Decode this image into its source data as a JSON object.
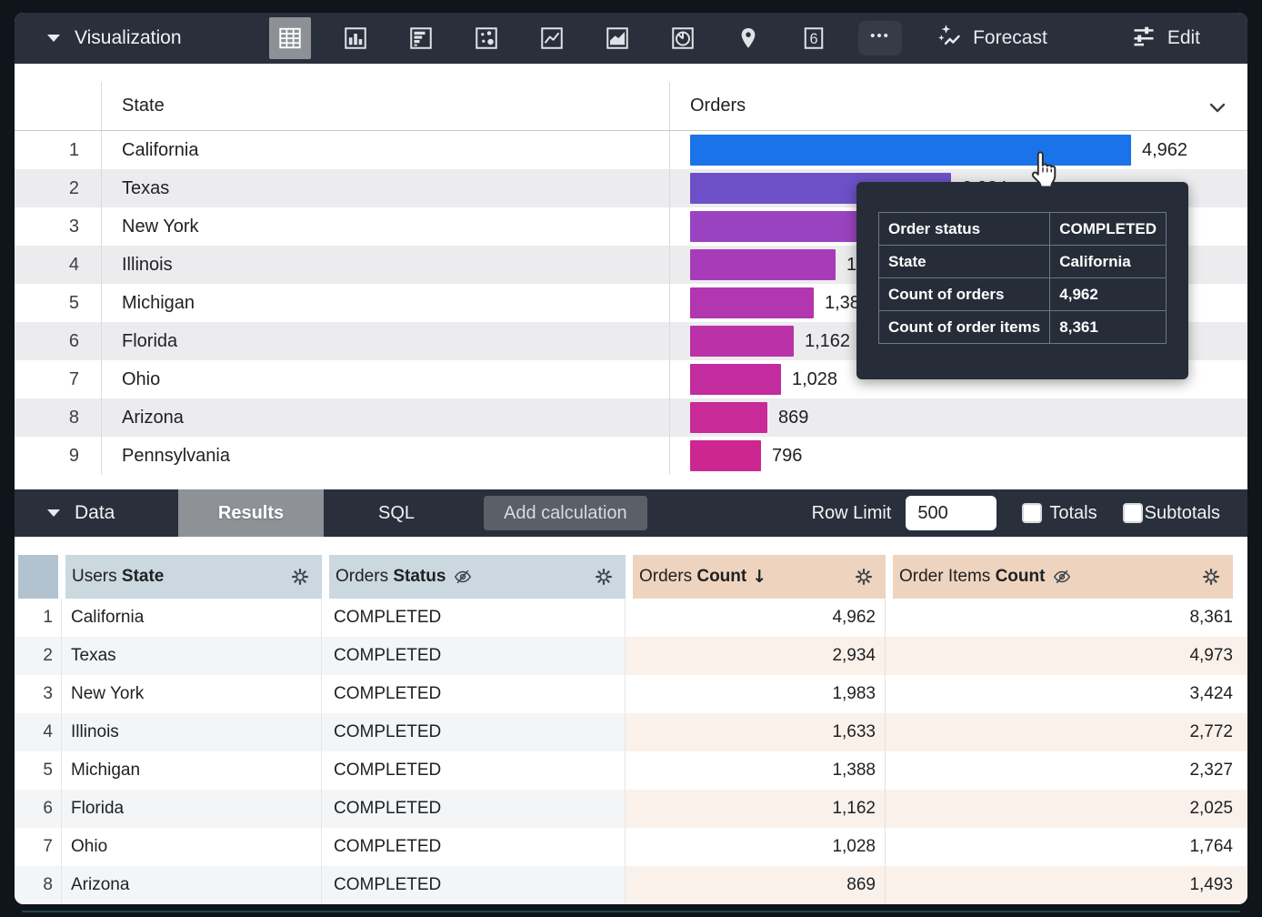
{
  "toolbar": {
    "visualization_label": "Visualization",
    "forecast_label": "Forecast",
    "edit_label": "Edit",
    "single_value_glyph": "6",
    "more_glyph": "•••",
    "icons": [
      {
        "name": "table",
        "selected": true
      },
      {
        "name": "column-chart",
        "selected": false
      },
      {
        "name": "bar-chart",
        "selected": false
      },
      {
        "name": "scatter-plot",
        "selected": false
      },
      {
        "name": "line-chart",
        "selected": false
      },
      {
        "name": "area-chart",
        "selected": false
      },
      {
        "name": "pie-chart",
        "selected": false
      },
      {
        "name": "map",
        "selected": false
      },
      {
        "name": "single-value",
        "selected": false
      },
      {
        "name": "more-options",
        "selected": false
      }
    ]
  },
  "viz": {
    "state_header": "State",
    "orders_header": "Orders",
    "max_value": 4962,
    "rows": [
      {
        "num": "1",
        "state": "California",
        "value": 4962,
        "value_label": "4,962",
        "color": "#1a73e8"
      },
      {
        "num": "2",
        "state": "Texas",
        "value": 2934,
        "value_label": "2,934",
        "color": "#6d50c7"
      },
      {
        "num": "3",
        "state": "New York",
        "value": 1983,
        "value_label": "1,983",
        "color": "#9a43c0"
      },
      {
        "num": "4",
        "state": "Illinois",
        "value": 1633,
        "value_label": "1,633",
        "color": "#a83cb8"
      },
      {
        "num": "5",
        "state": "Michigan",
        "value": 1388,
        "value_label": "1,388",
        "color": "#b236b0"
      },
      {
        "num": "6",
        "state": "Florida",
        "value": 1162,
        "value_label": "1,162",
        "color": "#bb31a7"
      },
      {
        "num": "7",
        "state": "Ohio",
        "value": 1028,
        "value_label": "1,028",
        "color": "#c22c9f"
      },
      {
        "num": "8",
        "state": "Arizona",
        "value": 869,
        "value_label": "869",
        "color": "#c82a98"
      },
      {
        "num": "9",
        "state": "Pennsylvania",
        "value": 796,
        "value_label": "796",
        "color": "#cc2791"
      }
    ]
  },
  "tooltip": {
    "rows": [
      {
        "label": "Order status",
        "value": "COMPLETED"
      },
      {
        "label": "State",
        "value": "California"
      },
      {
        "label": "Count of orders",
        "value": "4,962"
      },
      {
        "label": "Count of order items",
        "value": "8,361"
      }
    ]
  },
  "data_bar": {
    "data_label": "Data",
    "results_label": "Results",
    "sql_label": "SQL",
    "add_calculation_label": "Add calculation",
    "row_limit_label": "Row Limit",
    "row_limit_value": "500",
    "totals_label": "Totals",
    "totals_checked": false,
    "subtotals_label": "Subtotals",
    "subtotals_checked": false
  },
  "data_table": {
    "headers": [
      {
        "view": "Users",
        "field": "State",
        "measure": false,
        "hidden": false,
        "sorted": false,
        "sort_glyph": ""
      },
      {
        "view": "Orders",
        "field": "Status",
        "measure": false,
        "hidden": true,
        "sorted": false,
        "sort_glyph": ""
      },
      {
        "view": "Orders",
        "field": "Count",
        "measure": true,
        "hidden": false,
        "sorted": true,
        "sort_glyph": "↓"
      },
      {
        "view": "Order Items",
        "field": "Count",
        "measure": true,
        "hidden": true,
        "sorted": false,
        "sort_glyph": ""
      }
    ],
    "rows": [
      {
        "num": "1",
        "state": "California",
        "status": "COMPLETED",
        "orders_count": "4,962",
        "order_items_count": "8,361"
      },
      {
        "num": "2",
        "state": "Texas",
        "status": "COMPLETED",
        "orders_count": "2,934",
        "order_items_count": "4,973"
      },
      {
        "num": "3",
        "state": "New York",
        "status": "COMPLETED",
        "orders_count": "1,983",
        "order_items_count": "3,424"
      },
      {
        "num": "4",
        "state": "Illinois",
        "status": "COMPLETED",
        "orders_count": "1,633",
        "order_items_count": "2,772"
      },
      {
        "num": "5",
        "state": "Michigan",
        "status": "COMPLETED",
        "orders_count": "1,388",
        "order_items_count": "2,327"
      },
      {
        "num": "6",
        "state": "Florida",
        "status": "COMPLETED",
        "orders_count": "1,162",
        "order_items_count": "2,025"
      },
      {
        "num": "7",
        "state": "Ohio",
        "status": "COMPLETED",
        "orders_count": "1,028",
        "order_items_count": "1,764"
      },
      {
        "num": "8",
        "state": "Arizona",
        "status": "COMPLETED",
        "orders_count": "869",
        "order_items_count": "1,493"
      }
    ]
  },
  "colors": {
    "toolbar_bg": "#29303b",
    "selected_icon_bg": "#8d9196",
    "accent_blue": "#1a73e8",
    "dimension_header_bg": "#cbd8e0",
    "rownum_header_bg": "#b2c2cf",
    "measure_header_bg": "#eed4be",
    "dimension_row_alt": "#f3f5f7",
    "measure_row_alt": "#faf1ea",
    "viz_row_alt": "#ececee",
    "tooltip_bg": "#262d38"
  }
}
